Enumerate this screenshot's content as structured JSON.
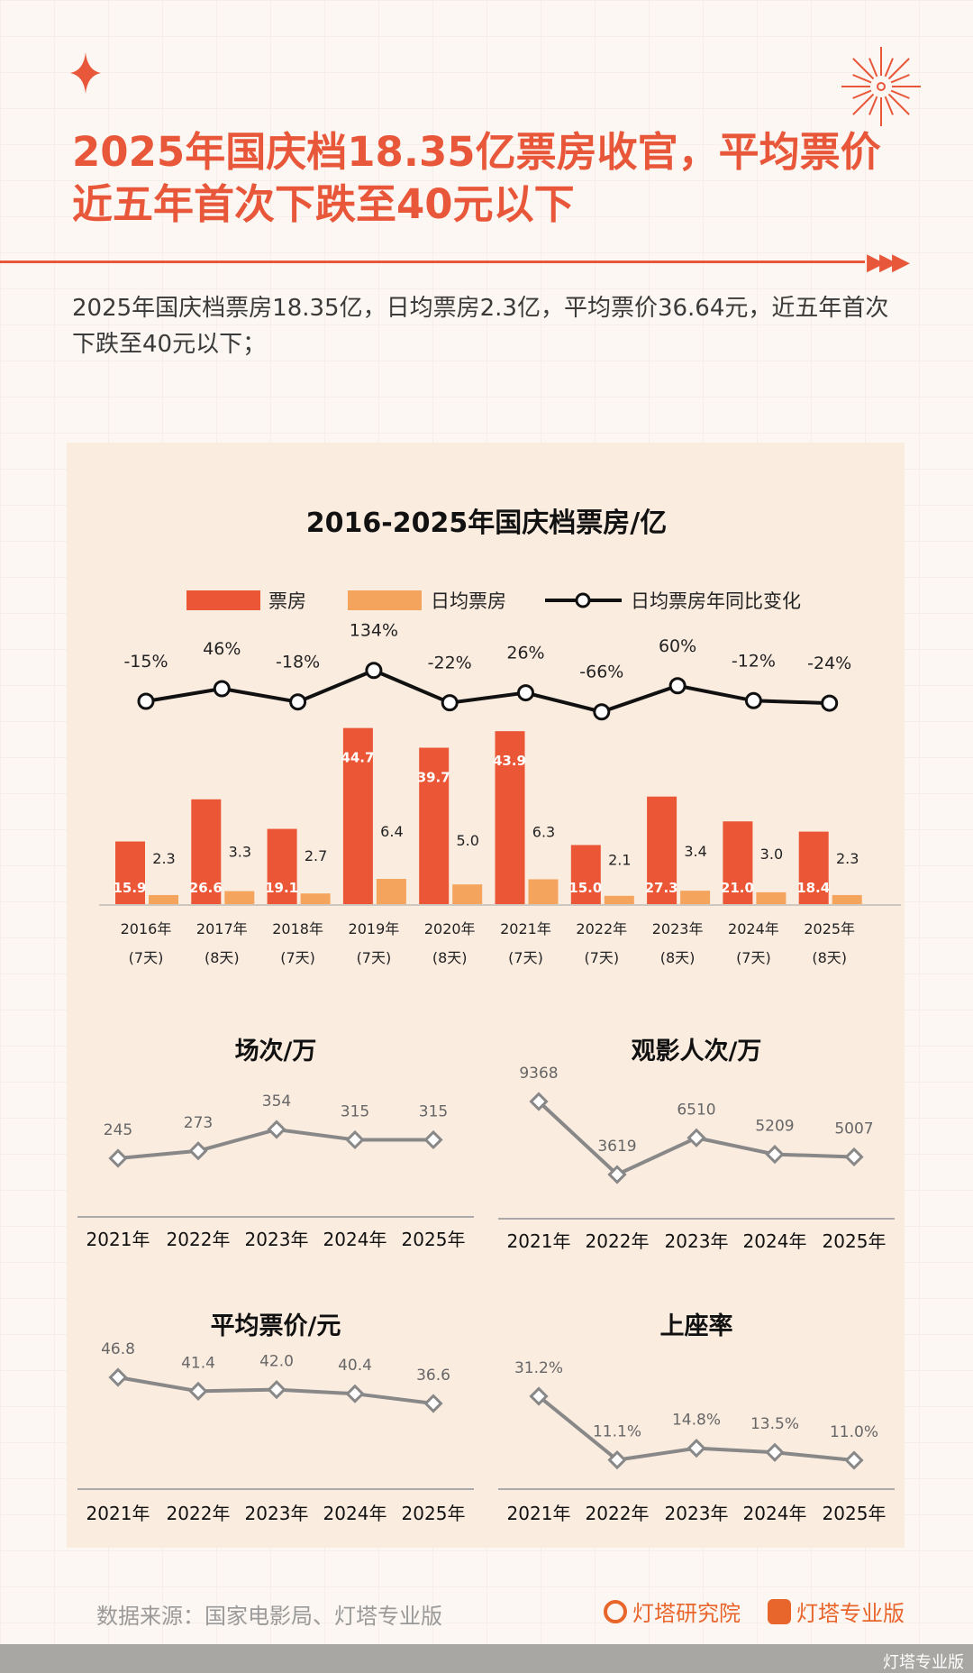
{
  "header": {
    "title": "2025年国庆档18.35亿票房收官，平均票价近五年首次下跌至40元以下",
    "subtitle": "2025年国庆档票房18.35亿，日均票房2.3亿，平均票价36.64元，近五年首次下跌至40元以下；",
    "decor_icons": [
      "sparkle-star-icon",
      "firework-icon",
      "triple-arrow-icon"
    ]
  },
  "colors": {
    "accent": "#e8573a",
    "bar_primary": "#ea5636",
    "bar_secondary": "#f4a45c",
    "line": "#111111",
    "small_line": "#888888"
  },
  "chart_data": [
    {
      "type": "bar",
      "title": "2016-2025年国庆档票房/亿",
      "categories": [
        "2016年",
        "2017年",
        "2018年",
        "2019年",
        "2020年",
        "2021年",
        "2022年",
        "2023年",
        "2024年",
        "2025年"
      ],
      "sub_categories": [
        "(7天)",
        "(8天)",
        "(7天)",
        "(7天)",
        "(8天)",
        "(7天)",
        "(7天)",
        "(8天)",
        "(7天)",
        "(8天)"
      ],
      "legend": "top",
      "series": [
        {
          "name": "票房",
          "type": "bar",
          "values": [
            15.9,
            26.6,
            19.1,
            44.7,
            39.7,
            43.9,
            15.0,
            27.3,
            21.0,
            18.4
          ],
          "labels": [
            "15.9",
            "26.6",
            "19.1",
            "44.7",
            "39.7",
            "43.9",
            "15.0",
            "27.3",
            "21.0",
            "18.4"
          ]
        },
        {
          "name": "日均票房",
          "type": "bar",
          "values": [
            2.3,
            3.3,
            2.7,
            6.4,
            5.0,
            6.3,
            2.1,
            3.4,
            3.0,
            2.3
          ],
          "labels": [
            "2.3",
            "3.3",
            "2.7",
            "6.4",
            "5.0",
            "6.3",
            "2.1",
            "3.4",
            "3.0",
            "2.3"
          ]
        },
        {
          "name": "日均票房年同比变化",
          "type": "line",
          "values": [
            -15,
            46,
            -18,
            134,
            -22,
            26,
            -66,
            60,
            -12,
            -24
          ],
          "labels": [
            "-15%",
            "46%",
            "-18%",
            "134%",
            "-22%",
            "26%",
            "-66%",
            "60%",
            "-12%",
            "-24%"
          ]
        }
      ]
    },
    {
      "type": "line",
      "title": "场次/万",
      "categories": [
        "2021年",
        "2022年",
        "2023年",
        "2024年",
        "2025年"
      ],
      "values": [
        245,
        273,
        354,
        315,
        315
      ],
      "labels": [
        "245",
        "273",
        "354",
        "315",
        "315"
      ]
    },
    {
      "type": "line",
      "title": "观影人次/万",
      "categories": [
        "2021年",
        "2022年",
        "2023年",
        "2024年",
        "2025年"
      ],
      "values": [
        9368,
        3619,
        6510,
        5209,
        5007
      ],
      "labels": [
        "9368",
        "3619",
        "6510",
        "5209",
        "5007"
      ]
    },
    {
      "type": "line",
      "title": "平均票价/元",
      "categories": [
        "2021年",
        "2022年",
        "2023年",
        "2024年",
        "2025年"
      ],
      "values": [
        46.8,
        41.4,
        42.0,
        40.4,
        36.6
      ],
      "labels": [
        "46.8",
        "41.4",
        "42.0",
        "40.4",
        "36.6"
      ]
    },
    {
      "type": "line",
      "title": "上座率",
      "categories": [
        "2021年",
        "2022年",
        "2023年",
        "2024年",
        "2025年"
      ],
      "values": [
        31.2,
        11.1,
        14.8,
        13.5,
        11.0
      ],
      "labels": [
        "31.2%",
        "11.1%",
        "14.8%",
        "13.5%",
        "11.0%"
      ]
    }
  ],
  "footer": {
    "source": "数据来源：国家电影局、灯塔专业版",
    "logo1": "灯塔研究院",
    "logo2": "灯塔专业版",
    "watermark": "灯塔专业版"
  }
}
